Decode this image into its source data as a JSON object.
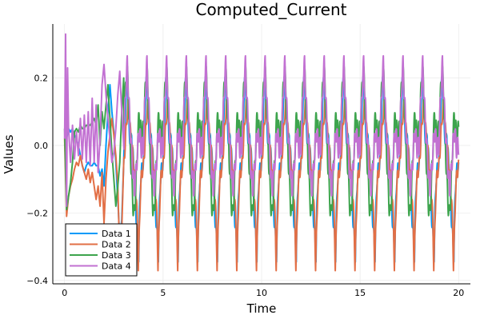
{
  "chart_data": {
    "type": "line",
    "title": "Computed_Current",
    "xlabel": "Time",
    "ylabel": "Values",
    "xlim": [
      -0.6,
      20.6
    ],
    "ylim": [
      -0.41,
      0.36
    ],
    "xticks": [
      0,
      5,
      10,
      15,
      20
    ],
    "xtick_labels": [
      "0",
      "5",
      "10",
      "15",
      "20"
    ],
    "yticks": [
      -0.4,
      -0.2,
      0.0,
      0.2
    ],
    "ytick_labels": [
      "−0.4",
      "−0.2",
      "0.0",
      "0.2"
    ],
    "grid": true,
    "legend_position": "bottom-left",
    "period": 1.0,
    "series": [
      {
        "name": "Data 1",
        "color": "#009af9",
        "x": [
          0.0,
          0.1,
          0.2,
          0.3,
          0.4,
          0.5,
          0.6,
          0.7,
          0.8,
          0.9,
          1.0,
          1.1,
          1.2,
          1.3,
          1.4,
          1.5,
          1.6,
          1.7,
          1.8,
          1.9,
          2.0,
          2.1,
          2.2,
          2.3,
          2.4,
          2.5,
          2.6,
          2.7,
          2.8,
          2.9,
          3.0
        ],
        "y": [
          0.0,
          0.02,
          0.05,
          0.04,
          0.05,
          0.03,
          0.02,
          0.0,
          -0.03,
          -0.06,
          -0.08,
          -0.06,
          -0.05,
          -0.06,
          -0.06,
          -0.05,
          -0.06,
          -0.06,
          -0.09,
          -0.07,
          -0.12,
          0.0,
          0.1,
          0.18,
          0.1,
          0.04,
          -0.05,
          -0.16,
          -0.28,
          -0.22,
          -0.05
        ],
        "periodic_cycle": {
          "t": [
            0.0,
            0.06,
            0.12,
            0.18,
            0.22,
            0.28,
            0.34,
            0.4,
            0.46,
            0.52,
            0.58,
            0.64,
            0.7,
            0.76,
            0.8,
            0.86,
            0.92,
            1.0
          ],
          "y": [
            -0.05,
            0.05,
            0.17,
            0.21,
            0.12,
            0.05,
            0.0,
            0.04,
            -0.02,
            -0.07,
            -0.15,
            -0.22,
            -0.27,
            -0.33,
            -0.2,
            -0.1,
            -0.07,
            -0.05
          ]
        }
      },
      {
        "name": "Data 2",
        "color": "#e26f46",
        "x": [
          0.0,
          0.1,
          0.2,
          0.3,
          0.4,
          0.5,
          0.6,
          0.7,
          0.8,
          0.9,
          1.0,
          1.1,
          1.2,
          1.3,
          1.4,
          1.5,
          1.6,
          1.7,
          1.8,
          1.9,
          2.0,
          2.1,
          2.2,
          2.3,
          2.4,
          2.5,
          2.6,
          2.7,
          2.8,
          2.9,
          3.0
        ],
        "y": [
          0.02,
          -0.21,
          -0.15,
          -0.12,
          -0.1,
          -0.07,
          -0.05,
          -0.06,
          -0.03,
          -0.06,
          -0.08,
          -0.1,
          -0.07,
          -0.11,
          -0.08,
          -0.12,
          -0.16,
          -0.12,
          -0.18,
          -0.08,
          -0.23,
          -0.1,
          -0.02,
          0.03,
          0.08,
          0.03,
          -0.03,
          -0.12,
          -0.33,
          -0.25,
          -0.05
        ],
        "periodic_cycle": {
          "t": [
            0.0,
            0.05,
            0.1,
            0.16,
            0.22,
            0.28,
            0.34,
            0.4,
            0.46,
            0.52,
            0.58,
            0.64,
            0.7,
            0.74,
            0.78,
            0.84,
            0.9,
            1.0
          ],
          "y": [
            -0.06,
            -0.02,
            0.03,
            0.08,
            0.12,
            0.09,
            0.04,
            0.01,
            -0.03,
            -0.07,
            -0.11,
            -0.16,
            -0.24,
            -0.36,
            -0.28,
            -0.15,
            -0.09,
            -0.06
          ]
        }
      },
      {
        "name": "Data 3",
        "color": "#3da44d",
        "x": [
          0.0,
          0.1,
          0.2,
          0.3,
          0.4,
          0.5,
          0.6,
          0.7,
          0.8,
          0.9,
          1.0,
          1.1,
          1.2,
          1.3,
          1.4,
          1.5,
          1.6,
          1.7,
          1.8,
          1.9,
          2.0,
          2.1,
          2.2,
          2.3,
          2.4,
          2.5,
          2.6,
          2.7,
          2.8,
          2.9,
          3.0
        ],
        "y": [
          0.05,
          -0.19,
          -0.15,
          -0.11,
          -0.05,
          0.04,
          0.05,
          0.04,
          0.06,
          0.05,
          0.05,
          0.06,
          0.06,
          0.06,
          0.07,
          0.08,
          0.06,
          0.12,
          0.0,
          0.1,
          0.05,
          0.12,
          0.18,
          0.08,
          -0.02,
          -0.1,
          -0.18,
          -0.12,
          -0.05,
          0.1,
          0.2
        ],
        "periodic_cycle": {
          "t": [
            0.0,
            0.06,
            0.12,
            0.18,
            0.24,
            0.3,
            0.36,
            0.42,
            0.48,
            0.54,
            0.6,
            0.66,
            0.72,
            0.78,
            0.84,
            0.9,
            1.0
          ],
          "y": [
            0.05,
            0.12,
            0.19,
            0.22,
            0.14,
            0.05,
            -0.04,
            -0.12,
            -0.18,
            -0.21,
            -0.14,
            -0.06,
            0.03,
            0.09,
            0.06,
            0.02,
            0.05
          ]
        }
      },
      {
        "name": "Data 4",
        "color": "#c271d2",
        "x": [
          0.0,
          0.05,
          0.1,
          0.15,
          0.2,
          0.3,
          0.4,
          0.5,
          0.6,
          0.7,
          0.8,
          0.9,
          1.0,
          1.1,
          1.2,
          1.3,
          1.4,
          1.5,
          1.6,
          1.7,
          1.8,
          1.9,
          2.0,
          2.1,
          2.2,
          2.3,
          2.4,
          2.5,
          2.6,
          2.7,
          2.8,
          2.9,
          3.0
        ],
        "y": [
          0.02,
          0.33,
          -0.18,
          0.23,
          0.05,
          -0.05,
          0.06,
          -0.04,
          0.04,
          -0.03,
          0.08,
          -0.04,
          0.09,
          -0.05,
          0.1,
          -0.06,
          0.14,
          -0.05,
          0.12,
          -0.08,
          0.02,
          0.18,
          0.24,
          0.15,
          0.08,
          0.02,
          -0.05,
          -0.02,
          0.05,
          0.15,
          0.22,
          0.1,
          0.0
        ],
        "periodic_cycle": {
          "t": [
            0.0,
            0.06,
            0.12,
            0.18,
            0.24,
            0.3,
            0.36,
            0.42,
            0.48,
            0.54,
            0.6,
            0.66,
            0.72,
            0.78,
            0.84,
            0.9,
            1.0
          ],
          "y": [
            0.0,
            0.1,
            0.19,
            0.24,
            0.16,
            0.08,
            0.02,
            -0.04,
            -0.09,
            -0.13,
            -0.1,
            -0.05,
            0.0,
            0.04,
            0.02,
            -0.01,
            0.0
          ]
        }
      }
    ]
  }
}
